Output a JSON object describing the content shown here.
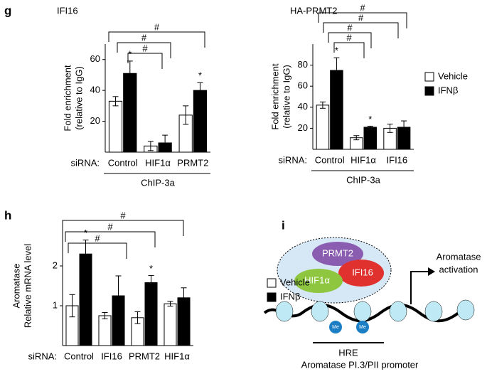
{
  "panel_labels": [
    "g",
    "h",
    "i"
  ],
  "chart_data": [
    {
      "type": "bar",
      "title": "IFI16",
      "ylabel": [
        "Fold enrichment",
        "(relative to IgG)"
      ],
      "xlabel": "siRNA:",
      "group_label": "ChIP-3a",
      "categories": [
        "Control",
        "HIF1α",
        "PRMT2"
      ],
      "series": [
        {
          "name": "Vehicle",
          "color": "#ffffff",
          "values": [
            33,
            4,
            24
          ],
          "errors": [
            3,
            3,
            6
          ],
          "stars": [
            null,
            null,
            null
          ]
        },
        {
          "name": "IFNβ",
          "color": "#000000",
          "values": [
            51,
            6,
            40
          ],
          "errors": [
            8,
            5,
            5
          ],
          "stars": [
            "*",
            null,
            "*"
          ]
        }
      ],
      "significance": [
        "#",
        "#",
        "#"
      ],
      "ylim": [
        0,
        70
      ],
      "yticks": [
        20,
        40,
        60
      ]
    },
    {
      "type": "bar",
      "title": "HA-PRMT2",
      "ylabel": [
        "Fold enrichment",
        "(relative to IgG)"
      ],
      "xlabel": "siRNA:",
      "group_label": "ChIP-3a",
      "categories": [
        "Control",
        "HIF1α",
        "IFI16"
      ],
      "series": [
        {
          "name": "Vehicle",
          "color": "#ffffff",
          "values": [
            42,
            11,
            20
          ],
          "errors": [
            3,
            2,
            4
          ],
          "stars": [
            null,
            null,
            null
          ]
        },
        {
          "name": "IFNβ",
          "color": "#000000",
          "values": [
            75,
            21,
            21
          ],
          "errors": [
            12,
            1,
            6
          ],
          "stars": [
            "*",
            "*",
            null
          ]
        }
      ],
      "significance": [
        "#",
        "#",
        "#",
        "#"
      ],
      "ylim": [
        0,
        100
      ],
      "yticks": [
        20,
        40,
        60,
        80
      ],
      "legend": "right"
    },
    {
      "type": "bar",
      "ylabel": [
        "Aromatase",
        "Relative mRNA level"
      ],
      "xlabel": "siRNA:",
      "categories": [
        "Control",
        "IFI16",
        "PRMT2",
        "HIF1α"
      ],
      "series": [
        {
          "name": "Vehicle",
          "color": "#ffffff",
          "values": [
            1.0,
            0.75,
            0.7,
            1.05
          ],
          "errors": [
            0.28,
            0.08,
            0.15,
            0.06
          ],
          "stars": [
            null,
            null,
            null,
            null
          ]
        },
        {
          "name": "IFNβ",
          "color": "#000000",
          "values": [
            2.3,
            1.25,
            1.58,
            1.2
          ],
          "errors": [
            0.35,
            0.5,
            0.18,
            0.25
          ],
          "stars": [
            "*",
            null,
            "*",
            null
          ]
        }
      ],
      "significance": [
        "#",
        "#",
        "#"
      ],
      "ylim": [
        0,
        3
      ],
      "yticks": [
        1,
        2
      ],
      "legend": "right"
    }
  ],
  "diagram": {
    "proteins": [
      "PRMT2",
      "IFI16",
      "HIF1α"
    ],
    "outcome": [
      "Aromatase",
      "activation"
    ],
    "marks": [
      "Me",
      "Me"
    ],
    "region": "HRE",
    "promoter": "Aromatase PI.3/PII promoter"
  }
}
